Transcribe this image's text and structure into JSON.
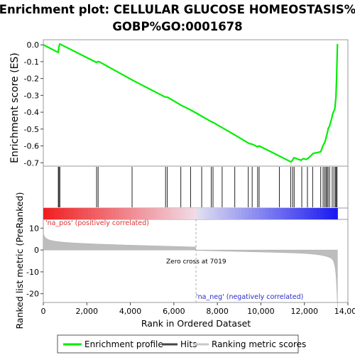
{
  "chart_data": {
    "type": "line",
    "title_line1": "Enrichment plot: CELLULAR GLUCOSE HOMEOSTASIS%",
    "title_line2": "GOBP%GO:0001678",
    "ylabel_top": "Enrichment score (ES)",
    "ylabel_bottom": "Ranked list metric (PreRanked)",
    "xlabel": "Rank in Ordered Dataset",
    "xlim": [
      0,
      14000
    ],
    "ylim_top": [
      -0.72,
      0.03
    ],
    "ylim_bottom": [
      -24,
      14
    ],
    "x_ticks": [
      {
        "value": 0,
        "label": "0"
      },
      {
        "value": 2000,
        "label": "2,000"
      },
      {
        "value": 4000,
        "label": "4,000"
      },
      {
        "value": 6000,
        "label": "6,000"
      },
      {
        "value": 8000,
        "label": "8,000"
      },
      {
        "value": 10000,
        "label": "10,000"
      },
      {
        "value": 12000,
        "label": "12,000"
      },
      {
        "value": 14000,
        "label": "14,000"
      }
    ],
    "y_ticks_top": [
      {
        "value": 0.0,
        "label": "0.0"
      },
      {
        "value": -0.1,
        "label": "-0.1"
      },
      {
        "value": -0.2,
        "label": "-0.2"
      },
      {
        "value": -0.3,
        "label": "-0.3"
      },
      {
        "value": -0.4,
        "label": "-0.4"
      },
      {
        "value": -0.5,
        "label": "-0.5"
      },
      {
        "value": -0.6,
        "label": "-0.6"
      },
      {
        "value": -0.7,
        "label": "-0.7"
      }
    ],
    "y_ticks_bottom": [
      {
        "value": 10,
        "label": "10"
      },
      {
        "value": 0,
        "label": "0"
      },
      {
        "value": -10,
        "label": "-10"
      },
      {
        "value": -20,
        "label": "-20"
      }
    ],
    "zero_cross_label": "Zero cross at 7019",
    "zero_cross_rank": 7019,
    "pos_label": "'na_pos' (positively correlated)",
    "neg_label": "'na_neg' (negatively correlated)",
    "series": [
      {
        "name": "Enrichment profile",
        "color": "#00ee00",
        "x": [
          0,
          690,
          720,
          760,
          2450,
          2500,
          2560,
          4100,
          5600,
          5700,
          6350,
          6750,
          7300,
          7700,
          7800,
          8200,
          8800,
          9450,
          9600,
          9850,
          9920,
          10850,
          11380,
          11450,
          11520,
          11850,
          11950,
          12100,
          12200,
          12400,
          12750,
          12850,
          12950,
          13000,
          13050,
          13100,
          13150,
          13250,
          13300,
          13400,
          13450,
          13480,
          13500,
          13520
        ],
        "y": [
          0.0,
          -0.045,
          -0.01,
          0.005,
          -0.105,
          -0.1,
          -0.1,
          -0.21,
          -0.31,
          -0.31,
          -0.36,
          -0.385,
          -0.425,
          -0.455,
          -0.46,
          -0.49,
          -0.535,
          -0.585,
          -0.59,
          -0.605,
          -0.6,
          -0.66,
          -0.695,
          -0.685,
          -0.67,
          -0.685,
          -0.675,
          -0.68,
          -0.67,
          -0.645,
          -0.635,
          -0.6,
          -0.575,
          -0.55,
          -0.525,
          -0.495,
          -0.485,
          -0.44,
          -0.41,
          -0.38,
          -0.31,
          -0.2,
          -0.1,
          0.005
        ]
      }
    ],
    "hits": [
      690,
      720,
      760,
      2450,
      2520,
      4080,
      5620,
      5700,
      6320,
      6770,
      7280,
      7720,
      7800,
      8220,
      8800,
      9420,
      9600,
      9850,
      9920,
      10850,
      11370,
      11460,
      11530,
      11880,
      12140,
      12380,
      12750,
      12860,
      12930,
      12990,
      13040,
      13090,
      13160,
      13280,
      13360,
      13430,
      13470,
      13500
    ],
    "legend": [
      {
        "label": "Enrichment profile",
        "color": "#00ee00"
      },
      {
        "label": "Hits",
        "color": "#444444"
      },
      {
        "label": "Ranking metric scores",
        "color": "#c8c8c8"
      }
    ],
    "grid": false
  }
}
